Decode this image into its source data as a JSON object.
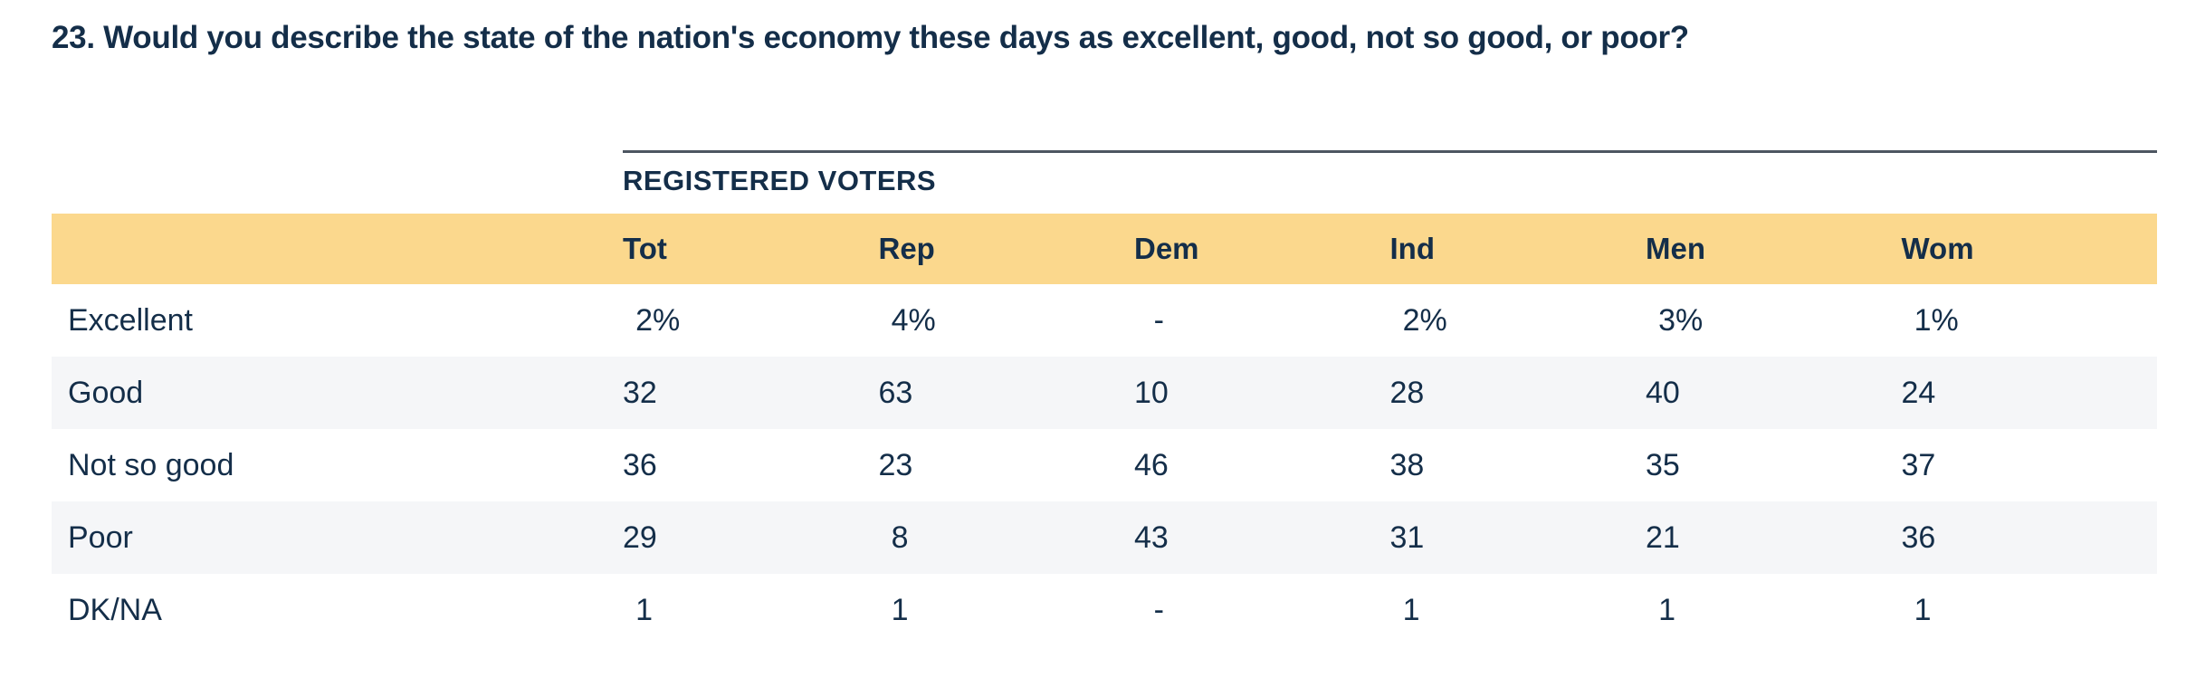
{
  "question": {
    "title": "23. Would you describe the state of the nation's economy these days as excellent, good, not so good, or poor?"
  },
  "table": {
    "group_header": "REGISTERED VOTERS",
    "columns": [
      "Tot",
      "Rep",
      "Dem",
      "Ind",
      "Men",
      "Wom"
    ],
    "rows": [
      {
        "label": "Excellent",
        "values": [
          "2%",
          "4%",
          "-",
          "2%",
          "3%",
          "1%"
        ]
      },
      {
        "label": "Good",
        "values": [
          "32",
          "63",
          "10",
          "28",
          "40",
          "24"
        ]
      },
      {
        "label": "Not so good",
        "values": [
          "36",
          "23",
          "46",
          "38",
          "35",
          "37"
        ]
      },
      {
        "label": "Poor",
        "values": [
          "29",
          "8",
          "43",
          "31",
          "21",
          "36"
        ]
      },
      {
        "label": "DK/NA",
        "values": [
          "1",
          "1",
          "-",
          "1",
          "1",
          "1"
        ]
      }
    ]
  },
  "colors": {
    "text_navy": "#142e49",
    "header_band": "#fbd88d",
    "alt_row": "#f5f6f8",
    "rule": "#4d5661"
  }
}
